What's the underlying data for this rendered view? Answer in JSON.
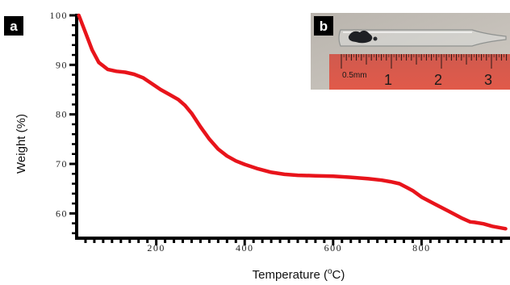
{
  "panels": {
    "a": "a",
    "b": "b"
  },
  "chart_data": {
    "type": "line",
    "title": "",
    "xlabel_prefix": "Temperature (",
    "xlabel_super": "o",
    "xlabel_suffix": "C)",
    "ylabel": "Weight (%)",
    "xlim": [
      20,
      1000
    ],
    "ylim": [
      55,
      100
    ],
    "xticks": [
      200,
      400,
      600,
      800
    ],
    "yticks": [
      60,
      70,
      80,
      90,
      100
    ],
    "grid": false,
    "series": [
      {
        "color": "#e8141b",
        "x": [
          25,
          40,
          55,
          70,
          90,
          110,
          130,
          150,
          170,
          190,
          210,
          230,
          250,
          265,
          280,
          300,
          320,
          340,
          360,
          380,
          400,
          430,
          460,
          490,
          520,
          560,
          600,
          640,
          680,
          710,
          730,
          750,
          765,
          780,
          800,
          830,
          860,
          890,
          910,
          920,
          940,
          960,
          990
        ],
        "y": [
          100,
          96.5,
          93,
          90.5,
          89.1,
          88.7,
          88.5,
          88.1,
          87.4,
          86.2,
          85.0,
          84.0,
          83.0,
          81.8,
          80.2,
          77.5,
          75.0,
          73.0,
          71.6,
          70.6,
          69.9,
          69.0,
          68.3,
          67.9,
          67.7,
          67.6,
          67.5,
          67.3,
          67.0,
          66.7,
          66.4,
          66.0,
          65.3,
          64.6,
          63.3,
          61.9,
          60.5,
          59.1,
          58.3,
          58.2,
          57.9,
          57.4,
          56.9
        ]
      }
    ]
  },
  "inset_photo": {
    "ruler_label": "0.5mm",
    "ruler_numbers": [
      "1",
      "2",
      "3"
    ]
  }
}
